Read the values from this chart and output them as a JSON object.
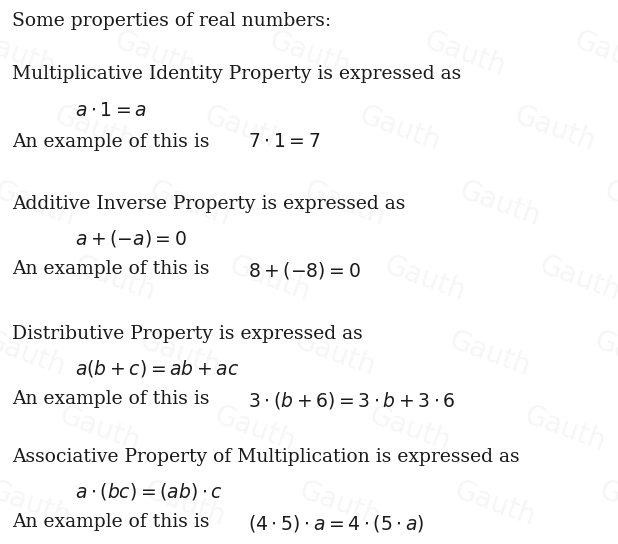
{
  "background_color": "#ffffff",
  "text_color": "#1a1a1a",
  "watermark_color": "#cccccc",
  "title": "Some properties of real numbers:",
  "properties": [
    {
      "name": "Multiplicative Identity Property is expressed as",
      "formula": "$a \\cdot 1 = a$",
      "example_prefix": "An example of this is",
      "example": "$7 \\cdot 1 = 7$"
    },
    {
      "name": "Additive Inverse Property is expressed as",
      "formula": "$a + (-a) = 0$",
      "example_prefix": "An example of this is",
      "example": "$8 + (-8) = 0$"
    },
    {
      "name": "Distributive Property is expressed as",
      "formula": "$a(b + c) = ab + ac$",
      "example_prefix": "An example of this is",
      "example": "$3 \\cdot (b + 6) = 3 \\cdot b + 3 \\cdot 6$"
    },
    {
      "name": "Associative Property of Multiplication is expressed as",
      "formula": "$a \\cdot (bc) = (ab) \\cdot c$",
      "example_prefix": "An example of this is",
      "example": "$(4 \\cdot 5) \\cdot a = 4 \\cdot (5 \\cdot a)$"
    }
  ],
  "title_fontsize": 13.5,
  "name_fontsize": 13.5,
  "formula_fontsize": 13.5,
  "example_fontsize": 13.5,
  "watermark_text": "Gauth",
  "watermark_fontsize": 20,
  "watermark_alpha": 0.18,
  "fig_width": 6.18,
  "fig_height": 5.44,
  "dpi": 100
}
